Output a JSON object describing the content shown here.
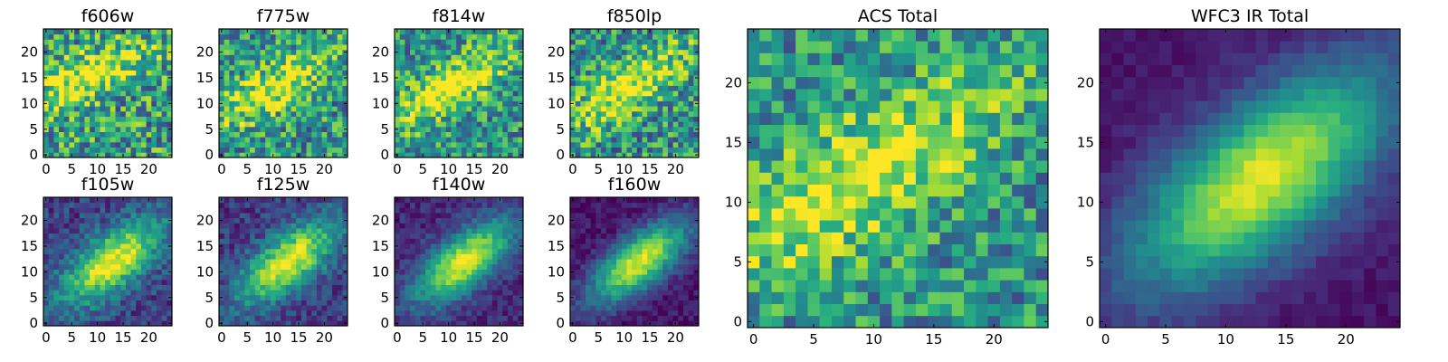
{
  "figure": {
    "description_type": "grid of heatmap image panels"
  },
  "chart_data": [
    {
      "type": "heatmap",
      "title": "f606w",
      "grid": [
        25,
        25
      ],
      "xlim": [
        0,
        24
      ],
      "ylim": [
        0,
        24
      ],
      "xticks": [
        "0",
        "5",
        "10",
        "15",
        "20"
      ],
      "yticks": [
        "0",
        "5",
        "10",
        "15",
        "20"
      ],
      "colormap": "viridis",
      "model": {
        "cx": 8,
        "cy": 15,
        "sx": 9,
        "sy": 3,
        "angle": -25,
        "amp": 0.45,
        "base": 0.55,
        "noise": 0.35
      }
    },
    {
      "type": "heatmap",
      "title": "f775w",
      "grid": [
        25,
        25
      ],
      "xlim": [
        0,
        24
      ],
      "ylim": [
        0,
        24
      ],
      "xticks": [
        "0",
        "5",
        "10",
        "15",
        "20"
      ],
      "yticks": [
        "0",
        "5",
        "10",
        "15",
        "20"
      ],
      "colormap": "viridis",
      "model": {
        "cx": 10,
        "cy": 13,
        "sx": 9,
        "sy": 3,
        "angle": -30,
        "amp": 0.45,
        "base": 0.52,
        "noise": 0.32
      }
    },
    {
      "type": "heatmap",
      "title": "f814w",
      "grid": [
        25,
        25
      ],
      "xlim": [
        0,
        24
      ],
      "ylim": [
        0,
        24
      ],
      "xticks": [
        "0",
        "5",
        "10",
        "15",
        "20"
      ],
      "yticks": [
        "0",
        "5",
        "10",
        "15",
        "20"
      ],
      "colormap": "viridis",
      "model": {
        "cx": 10,
        "cy": 13,
        "sx": 10,
        "sy": 3.2,
        "angle": -32,
        "amp": 0.5,
        "base": 0.5,
        "noise": 0.3
      }
    },
    {
      "type": "heatmap",
      "title": "f850lp",
      "grid": [
        25,
        25
      ],
      "xlim": [
        0,
        24
      ],
      "ylim": [
        0,
        24
      ],
      "xticks": [
        "0",
        "5",
        "10",
        "15",
        "20"
      ],
      "yticks": [
        "0",
        "5",
        "10",
        "15",
        "20"
      ],
      "colormap": "viridis",
      "model": {
        "cx": 11,
        "cy": 13,
        "sx": 10,
        "sy": 3.2,
        "angle": -32,
        "amp": 0.5,
        "base": 0.5,
        "noise": 0.32
      }
    },
    {
      "type": "heatmap",
      "title": "ACS Total",
      "grid": [
        25,
        25
      ],
      "xlim": [
        0,
        24
      ],
      "ylim": [
        0,
        24
      ],
      "xticks": [
        "0",
        "5",
        "10",
        "15",
        "20"
      ],
      "yticks": [
        "0",
        "5",
        "10",
        "15",
        "20"
      ],
      "colormap": "viridis",
      "model": {
        "cx": 9,
        "cy": 12,
        "sx": 10,
        "sy": 3.5,
        "angle": -32,
        "amp": 0.5,
        "base": 0.5,
        "noise": 0.28
      }
    },
    {
      "type": "heatmap",
      "title": "f105w",
      "grid": [
        25,
        25
      ],
      "xlim": [
        0,
        24
      ],
      "ylim": [
        0,
        24
      ],
      "xticks": [
        "0",
        "5",
        "10",
        "15",
        "20"
      ],
      "yticks": [
        "0",
        "5",
        "10",
        "15",
        "20"
      ],
      "colormap": "viridis",
      "model": {
        "cx": 13,
        "cy": 12,
        "sx": 8,
        "sy": 3.5,
        "angle": -38,
        "amp": 0.8,
        "base": 0.2,
        "noise": 0.15
      }
    },
    {
      "type": "heatmap",
      "title": "f125w",
      "grid": [
        25,
        25
      ],
      "xlim": [
        0,
        24
      ],
      "ylim": [
        0,
        24
      ],
      "xticks": [
        "0",
        "5",
        "10",
        "15",
        "20"
      ],
      "yticks": [
        "0",
        "5",
        "10",
        "15",
        "20"
      ],
      "colormap": "viridis",
      "model": {
        "cx": 13,
        "cy": 12,
        "sx": 8,
        "sy": 3.5,
        "angle": -38,
        "amp": 0.8,
        "base": 0.18,
        "noise": 0.14
      }
    },
    {
      "type": "heatmap",
      "title": "f140w",
      "grid": [
        25,
        25
      ],
      "xlim": [
        0,
        24
      ],
      "ylim": [
        0,
        24
      ],
      "xticks": [
        "0",
        "5",
        "10",
        "15",
        "20"
      ],
      "yticks": [
        "0",
        "5",
        "10",
        "15",
        "20"
      ],
      "colormap": "viridis",
      "model": {
        "cx": 13,
        "cy": 12,
        "sx": 8,
        "sy": 3.4,
        "angle": -38,
        "amp": 0.85,
        "base": 0.12,
        "noise": 0.1
      }
    },
    {
      "type": "heatmap",
      "title": "f160w",
      "grid": [
        25,
        25
      ],
      "xlim": [
        0,
        24
      ],
      "ylim": [
        0,
        24
      ],
      "xticks": [
        "0",
        "5",
        "10",
        "15",
        "20"
      ],
      "yticks": [
        "0",
        "5",
        "10",
        "15",
        "20"
      ],
      "colormap": "viridis",
      "model": {
        "cx": 13,
        "cy": 12,
        "sx": 8,
        "sy": 3.3,
        "angle": -38,
        "amp": 0.9,
        "base": 0.06,
        "noise": 0.09
      }
    },
    {
      "type": "heatmap",
      "title": "WFC3 IR Total",
      "grid": [
        25,
        25
      ],
      "xlim": [
        0,
        24
      ],
      "ylim": [
        0,
        24
      ],
      "xticks": [
        "0",
        "5",
        "10",
        "15",
        "20"
      ],
      "yticks": [
        "0",
        "5",
        "10",
        "15",
        "20"
      ],
      "colormap": "viridis",
      "model": {
        "cx": 13,
        "cy": 12,
        "sx": 9,
        "sy": 4,
        "angle": -38,
        "amp": 0.9,
        "base": 0.06,
        "noise": 0.05
      }
    }
  ]
}
